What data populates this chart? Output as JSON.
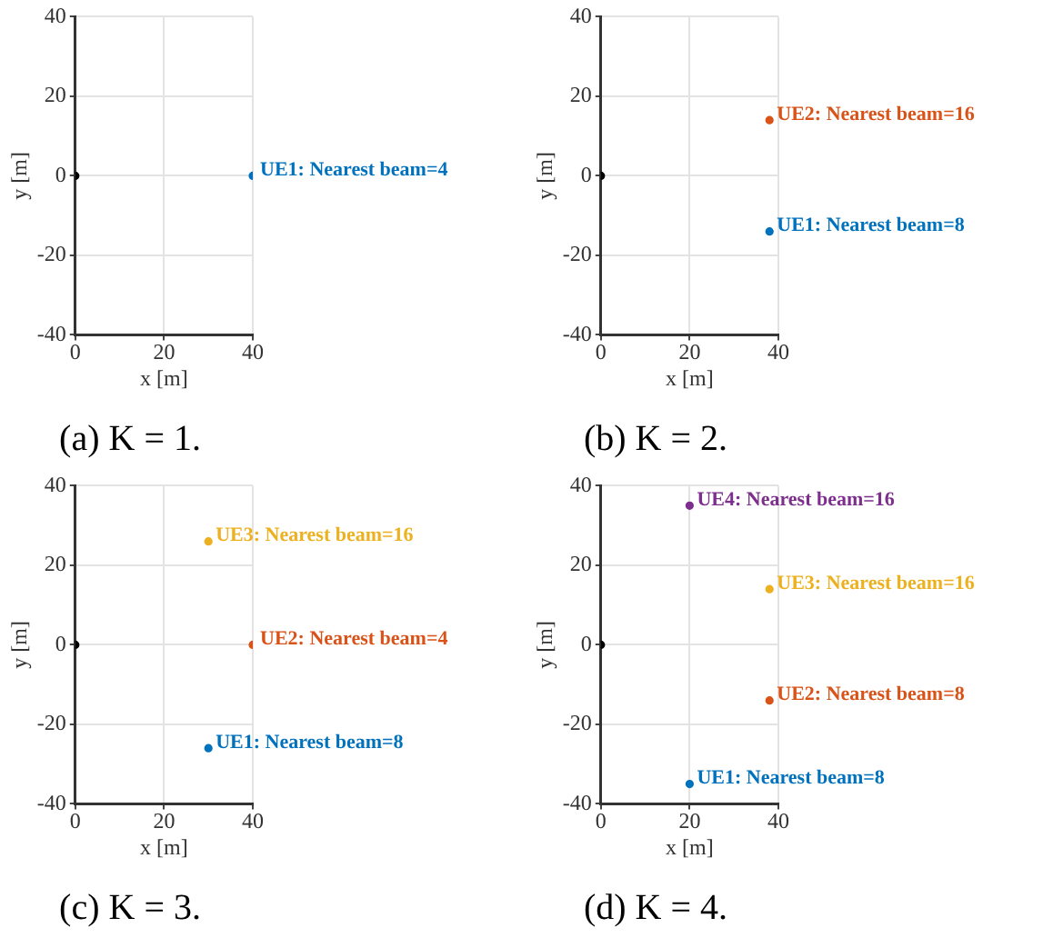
{
  "chart_data": [
    {
      "type": "scatter",
      "title": "(a) K = 1.",
      "xlabel": "x [m]",
      "ylabel": "y [m]",
      "xlim": [
        0,
        40
      ],
      "ylim": [
        -40,
        40
      ],
      "xticks": [
        0,
        20,
        40
      ],
      "yticks": [
        -40,
        -20,
        0,
        20,
        40
      ],
      "grid": true,
      "marker": "circle",
      "series": [
        {
          "color": "#000000",
          "x": [
            0
          ],
          "values": [
            0
          ]
        },
        {
          "name": "UE1: Nearest beam=4",
          "color": "#0072bd",
          "x": [
            40
          ],
          "values": [
            0
          ]
        }
      ]
    },
    {
      "type": "scatter",
      "title": "(b) K = 2.",
      "xlabel": "x [m]",
      "ylabel": "y [m]",
      "xlim": [
        0,
        40
      ],
      "ylim": [
        -40,
        40
      ],
      "xticks": [
        0,
        20,
        40
      ],
      "yticks": [
        -40,
        -20,
        0,
        20,
        40
      ],
      "grid": true,
      "marker": "circle",
      "series": [
        {
          "color": "#000000",
          "x": [
            0
          ],
          "values": [
            0
          ]
        },
        {
          "name": "UE1: Nearest beam=8",
          "color": "#0072bd",
          "x": [
            38
          ],
          "values": [
            -14
          ]
        },
        {
          "name": "UE2: Nearest beam=16",
          "color": "#d95319",
          "x": [
            38
          ],
          "values": [
            14
          ]
        }
      ]
    },
    {
      "type": "scatter",
      "title": "(c) K = 3.",
      "xlabel": "x [m]",
      "ylabel": "y [m]",
      "xlim": [
        0,
        40
      ],
      "ylim": [
        -40,
        40
      ],
      "xticks": [
        0,
        20,
        40
      ],
      "yticks": [
        -40,
        -20,
        0,
        20,
        40
      ],
      "grid": true,
      "marker": "circle",
      "series": [
        {
          "color": "#000000",
          "x": [
            0
          ],
          "values": [
            0
          ]
        },
        {
          "name": "UE1: Nearest beam=8",
          "color": "#0072bd",
          "x": [
            30
          ],
          "values": [
            -26
          ]
        },
        {
          "name": "UE2: Nearest beam=4",
          "color": "#d95319",
          "x": [
            40
          ],
          "values": [
            0
          ]
        },
        {
          "name": "UE3: Nearest beam=16",
          "color": "#edb120",
          "x": [
            30
          ],
          "values": [
            26
          ]
        }
      ]
    },
    {
      "type": "scatter",
      "title": "(d) K = 4.",
      "xlabel": "x [m]",
      "ylabel": "y [m]",
      "xlim": [
        0,
        40
      ],
      "ylim": [
        -40,
        40
      ],
      "xticks": [
        0,
        20,
        40
      ],
      "yticks": [
        -40,
        -20,
        0,
        20,
        40
      ],
      "grid": true,
      "marker": "circle",
      "series": [
        {
          "color": "#000000",
          "x": [
            0
          ],
          "values": [
            0
          ]
        },
        {
          "name": "UE1: Nearest beam=8",
          "color": "#0072bd",
          "x": [
            20
          ],
          "values": [
            -35
          ]
        },
        {
          "name": "UE2: Nearest beam=8",
          "color": "#d95319",
          "x": [
            38
          ],
          "values": [
            -14
          ]
        },
        {
          "name": "UE3: Nearest beam=16",
          "color": "#edb120",
          "x": [
            38
          ],
          "values": [
            14
          ]
        },
        {
          "name": "UE4: Nearest beam=16",
          "color": "#7e2f8e",
          "x": [
            20
          ],
          "values": [
            35
          ]
        }
      ]
    }
  ]
}
